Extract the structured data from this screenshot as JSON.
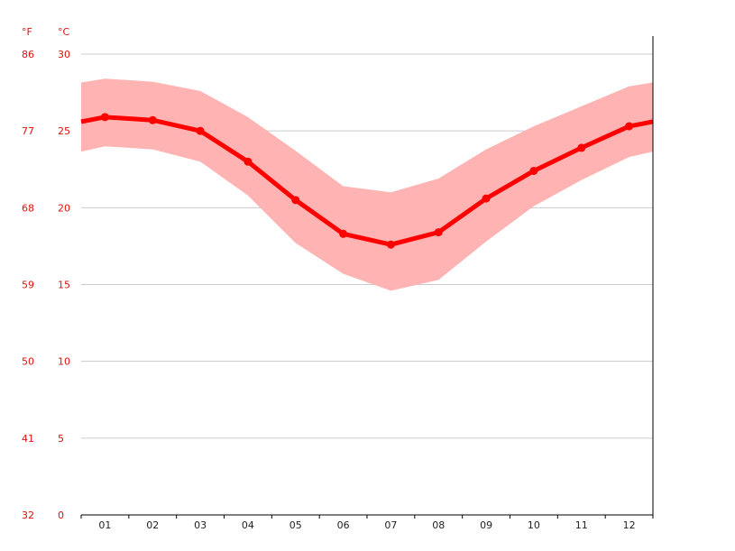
{
  "chart_data": {
    "type": "line",
    "unit_f_label": "°F",
    "unit_c_label": "°C",
    "categories": [
      "01",
      "02",
      "03",
      "04",
      "05",
      "06",
      "07",
      "08",
      "09",
      "10",
      "11",
      "12"
    ],
    "series": [
      {
        "values": [
          25.9,
          25.7,
          25.0,
          23.0,
          20.5,
          18.3,
          17.6,
          18.4,
          20.6,
          22.4,
          23.9,
          25.3
        ]
      }
    ],
    "band": {
      "upper": [
        28.4,
        28.2,
        27.6,
        25.9,
        23.7,
        21.4,
        21.0,
        21.9,
        23.8,
        25.3,
        26.6,
        27.9
      ],
      "lower": [
        24.0,
        23.8,
        23.0,
        20.8,
        17.7,
        15.7,
        14.6,
        15.3,
        17.8,
        20.1,
        21.8,
        23.3
      ]
    },
    "ylim": [
      0,
      30
    ],
    "yticks_c": [
      "0",
      "5",
      "10",
      "15",
      "20",
      "25",
      "30"
    ],
    "yticks_f": [
      "32",
      "41",
      "50",
      "59",
      "68",
      "77",
      "86"
    ],
    "grid": true,
    "colors": {
      "line": "#ff0000",
      "band": "#ffb3b3",
      "axis_text": "#e01010",
      "grid": "#cccccc"
    }
  }
}
